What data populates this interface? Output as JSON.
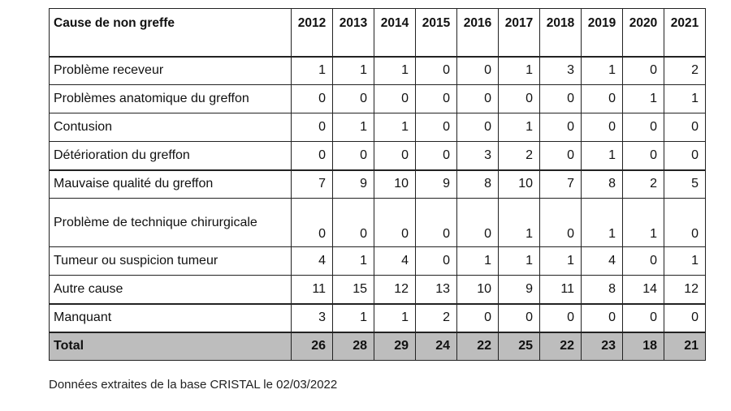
{
  "table": {
    "header": {
      "first": "Cause de non greffe",
      "years": [
        "2012",
        "2013",
        "2014",
        "2015",
        "2016",
        "2017",
        "2018",
        "2019",
        "2020",
        "2021"
      ]
    },
    "rows": [
      {
        "label": "Problème receveur",
        "values": [
          "1",
          "1",
          "1",
          "0",
          "0",
          "1",
          "3",
          "1",
          "0",
          "2"
        ]
      },
      {
        "label": "Problèmes anatomique du greffon",
        "values": [
          "0",
          "0",
          "0",
          "0",
          "0",
          "0",
          "0",
          "0",
          "1",
          "1"
        ]
      },
      {
        "label": "Contusion",
        "values": [
          "0",
          "1",
          "1",
          "0",
          "0",
          "1",
          "0",
          "0",
          "0",
          "0"
        ]
      },
      {
        "label": "Détérioration du greffon",
        "values": [
          "0",
          "0",
          "0",
          "0",
          "3",
          "2",
          "0",
          "1",
          "0",
          "0"
        ]
      },
      {
        "label": "Mauvaise qualité du greffon",
        "values": [
          "7",
          "9",
          "10",
          "9",
          "8",
          "10",
          "7",
          "8",
          "2",
          "5"
        ]
      },
      {
        "label": "Problème de technique chirurgicale",
        "values": [
          "0",
          "0",
          "0",
          "0",
          "0",
          "1",
          "0",
          "1",
          "1",
          "0"
        ]
      },
      {
        "label": "Tumeur ou suspicion tumeur",
        "values": [
          "4",
          "1",
          "4",
          "0",
          "1",
          "1",
          "1",
          "4",
          "0",
          "1"
        ]
      },
      {
        "label": "Autre cause",
        "values": [
          "11",
          "15",
          "12",
          "13",
          "10",
          "9",
          "11",
          "8",
          "14",
          "12"
        ]
      },
      {
        "label": "Manquant",
        "values": [
          "3",
          "1",
          "1",
          "2",
          "0",
          "0",
          "0",
          "0",
          "0",
          "0"
        ]
      }
    ],
    "total": {
      "label": "Total",
      "values": [
        "26",
        "28",
        "29",
        "24",
        "22",
        "25",
        "22",
        "23",
        "18",
        "21"
      ]
    }
  },
  "footnote": "Données extraites de la base CRISTAL le 02/03/2022"
}
